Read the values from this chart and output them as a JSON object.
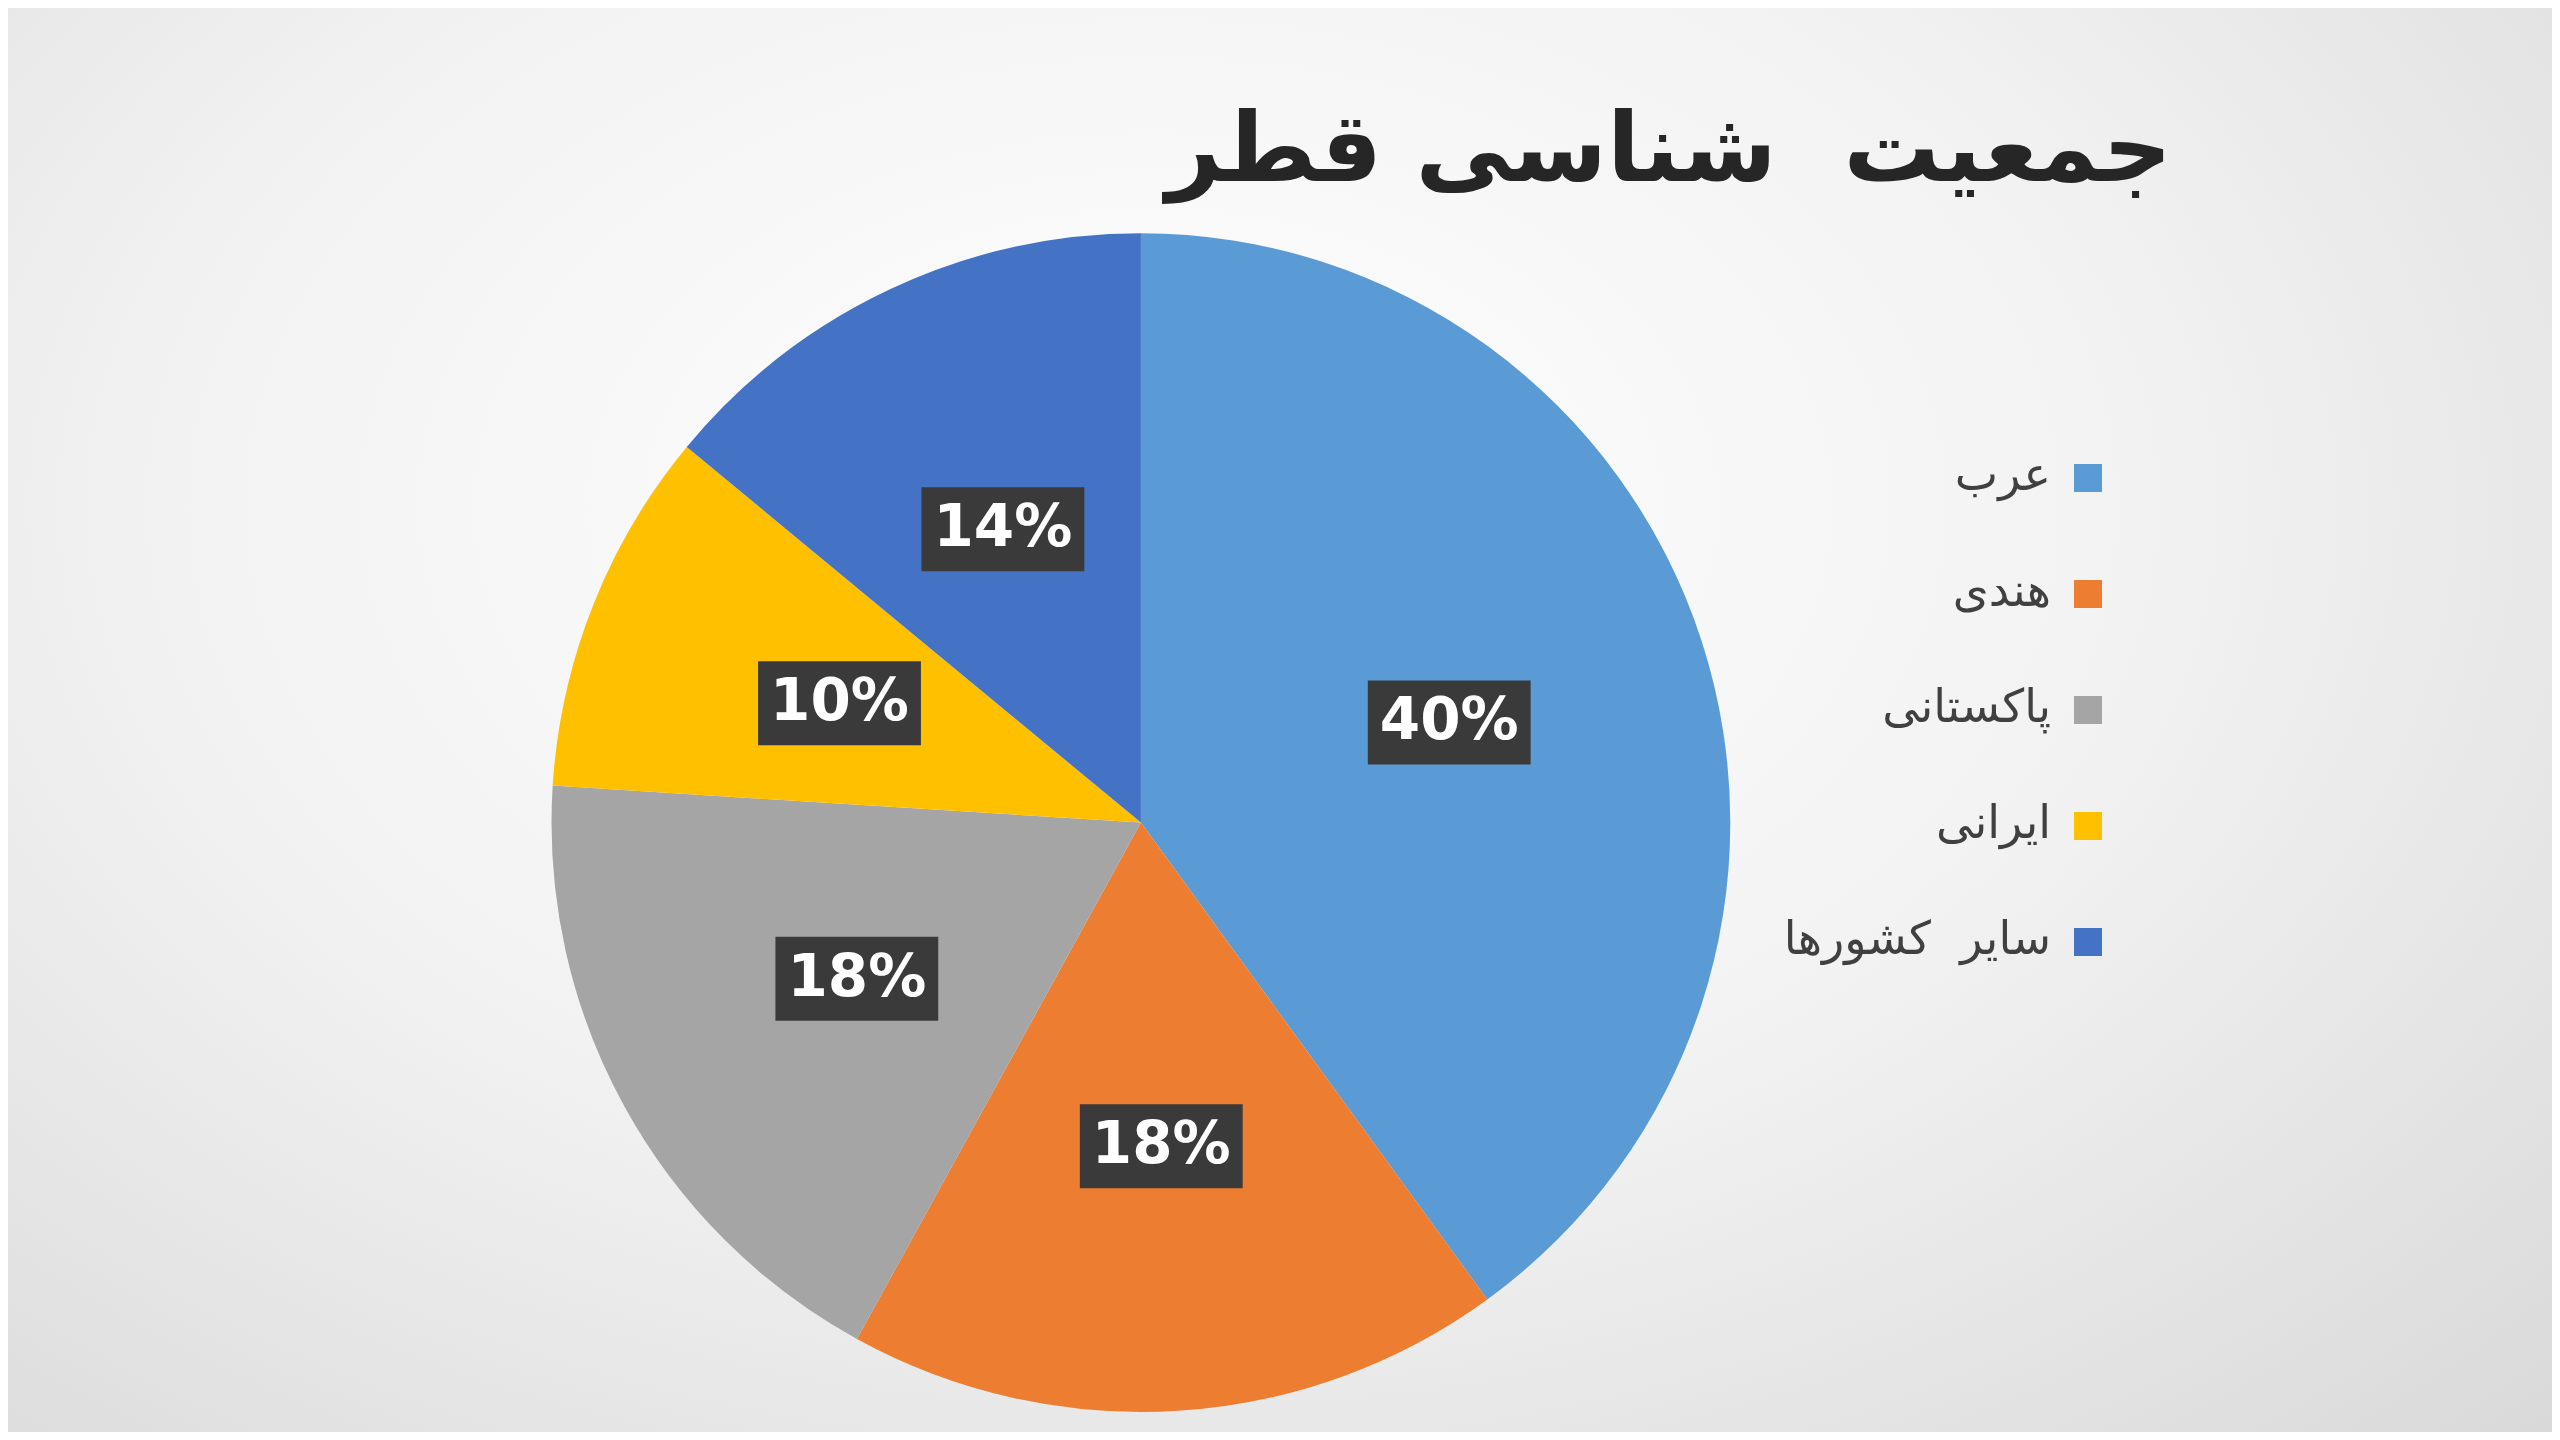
{
  "chart_data": {
    "type": "pie",
    "title": "جمعیت  شناسی قطر",
    "categories": [
      "عرب",
      "هندی",
      "پاکستانی",
      "ایرانی",
      "سایر  کشورها"
    ],
    "values": [
      40,
      18,
      18,
      10,
      14
    ],
    "colors": [
      "#5b9bd5",
      "#ed7d31",
      "#a5a5a5",
      "#ffc000",
      "#4472c4"
    ],
    "value_labels": [
      "40%",
      "18%",
      "18%",
      "10%",
      "14%"
    ],
    "legend": "right"
  }
}
